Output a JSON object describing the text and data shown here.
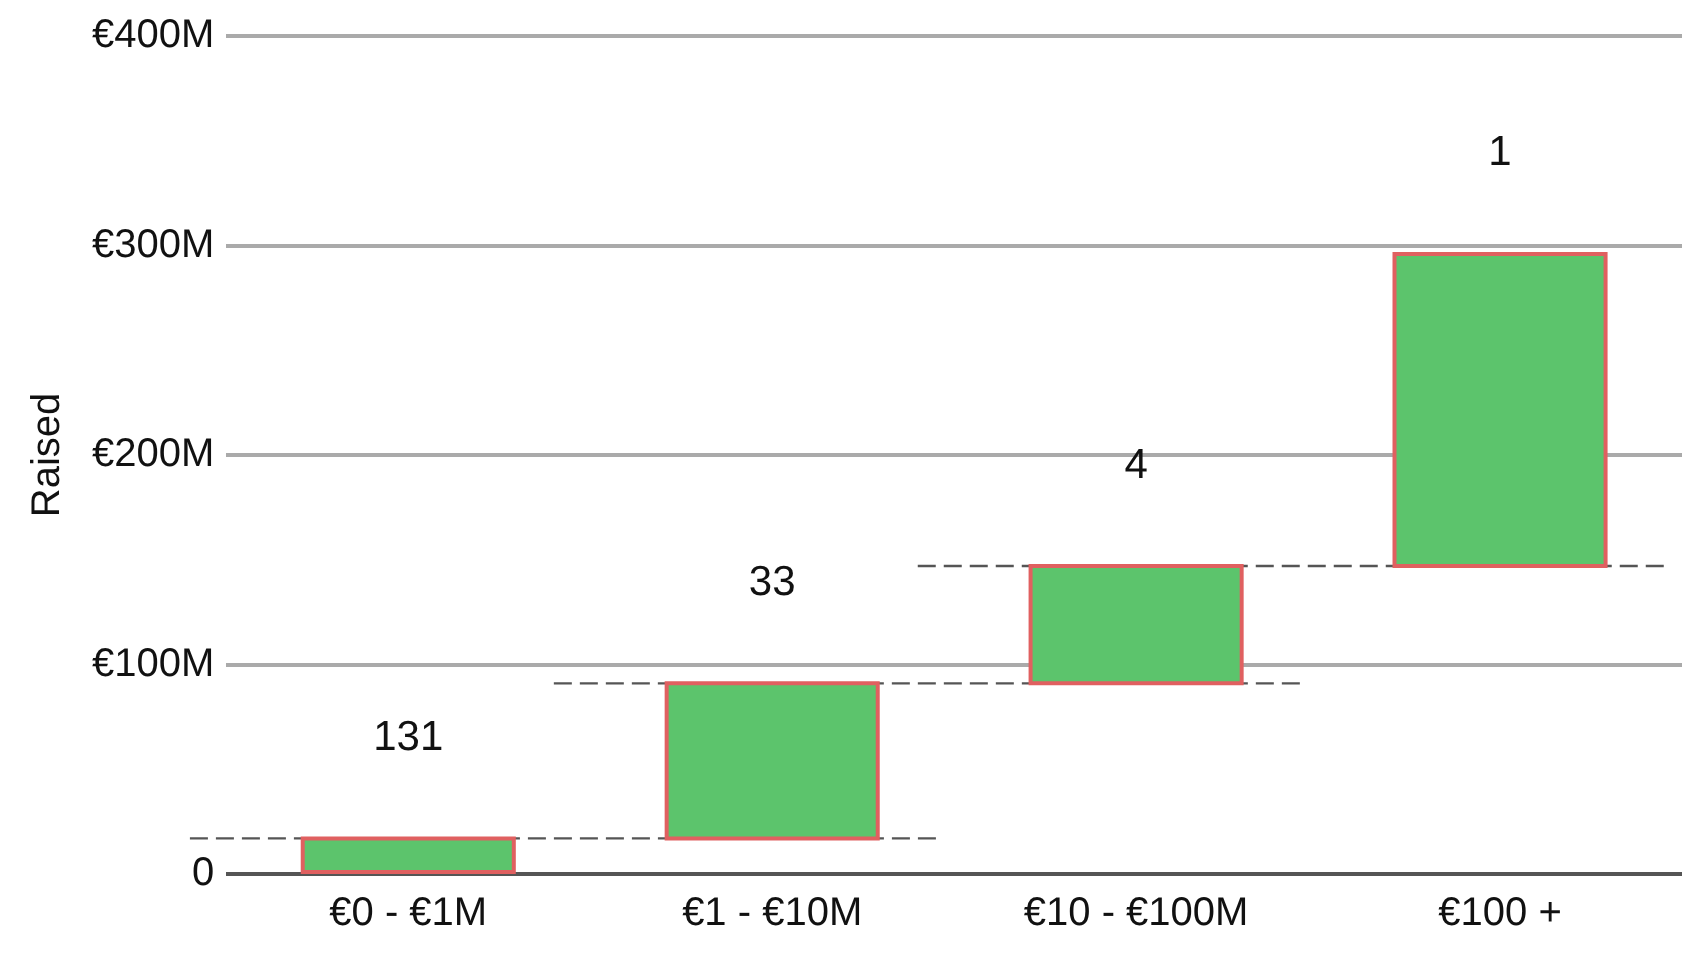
{
  "chart_data": {
    "type": "bar",
    "ylabel": "Raised",
    "categories": [
      "€0 - €1M",
      "€1 - €10M",
      "€10 - €100M",
      "€100 +"
    ],
    "values": [
      17,
      74,
      56,
      149
    ],
    "base": [
      0,
      17,
      91,
      147
    ],
    "color": "#5cc46c",
    "ylim": [
      0,
      400
    ],
    "yticks": [
      0,
      {
        "value": 100,
        "label": "€100M"
      },
      {
        "value": 200,
        "label": "€200M"
      },
      {
        "value": 300,
        "label": "€300M"
      },
      {
        "value": 400,
        "label": "€400M"
      }
    ],
    "grid": "y",
    "legend": false,
    "ref_lines": [
      {
        "axis": "y",
        "value": 17,
        "color": "#555555",
        "line_style": "dashed"
      },
      {
        "axis": "y",
        "value": 91,
        "color": "#555555",
        "line_style": "dashed"
      },
      {
        "axis": "y",
        "value": 147,
        "color": "#555555",
        "line_style": "dashed"
      }
    ],
    "annotations": [
      "131",
      "33",
      "4",
      "1"
    ]
  }
}
